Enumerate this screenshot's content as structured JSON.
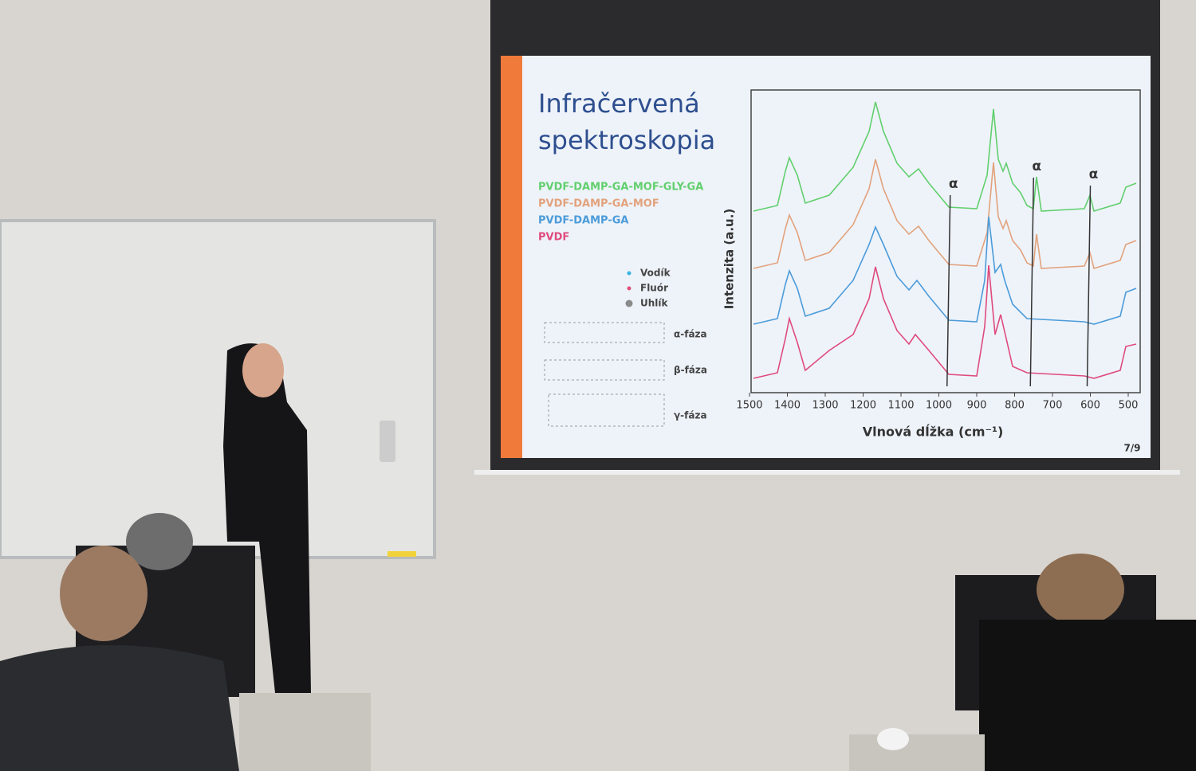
{
  "slide": {
    "title_lines": [
      "Infračervená",
      "spektroskopia"
    ],
    "legend": [
      {
        "name": "PVDF-DAMP-GA-MOF-GLY-GA",
        "color": "#62cf6e"
      },
      {
        "name": "PVDF-DAMP-GA-MOF",
        "color": "#e2a27c"
      },
      {
        "name": "PVDF-DAMP-GA",
        "color": "#4b9bd9"
      },
      {
        "name": "PVDF",
        "color": "#df4a7c"
      }
    ],
    "atoms": [
      {
        "name": "Vodík",
        "color": "#3ab4e0"
      },
      {
        "name": "Fluór",
        "color": "#e0507a"
      },
      {
        "name": "Uhlík",
        "color": "#8a8a8a"
      }
    ],
    "phases": [
      "α-fáza",
      "β-fáza",
      "γ-fáza"
    ],
    "axis": {
      "ylabel": "Intenzita (a.u.)",
      "xlabel": "Vlnová dĺžka (cm⁻¹)",
      "xlim": [
        1500,
        500
      ],
      "xticks": [
        1500,
        1400,
        1300,
        1200,
        1100,
        1000,
        900,
        800,
        700,
        600,
        500
      ]
    },
    "annotations": [
      {
        "text": "α",
        "x": 970
      },
      {
        "text": "α",
        "x": 750
      },
      {
        "text": "α",
        "x": 600
      }
    ],
    "page": "7/9"
  }
}
